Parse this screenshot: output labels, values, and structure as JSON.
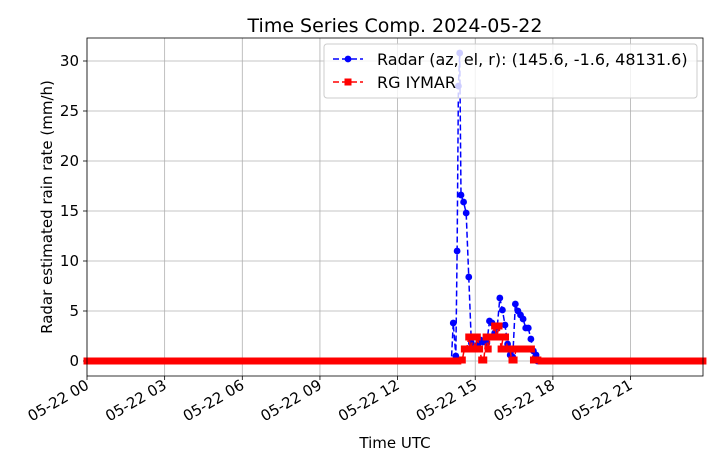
{
  "chart_data": {
    "type": "line",
    "title": "Time Series Comp. 2024-05-22",
    "xlabel": "Time UTC",
    "ylabel": "Radar estimated rain rate (mm/h)",
    "x_unit": "hours UTC on 2024-05-22",
    "xlim": [
      0,
      23.8
    ],
    "ylim": [
      -1.5,
      32.3
    ],
    "grid": true,
    "legend": "top-right",
    "x_ticks": [
      {
        "value": 0,
        "label": "05-22 00"
      },
      {
        "value": 3,
        "label": "05-22 03"
      },
      {
        "value": 6,
        "label": "05-22 06"
      },
      {
        "value": 9,
        "label": "05-22 09"
      },
      {
        "value": 12,
        "label": "05-22 12"
      },
      {
        "value": 15,
        "label": "05-22 15"
      },
      {
        "value": 18,
        "label": "05-22 18"
      },
      {
        "value": 21,
        "label": "05-22 21"
      }
    ],
    "y_ticks": [
      {
        "value": 0,
        "label": "0"
      },
      {
        "value": 5,
        "label": "5"
      },
      {
        "value": 10,
        "label": "10"
      },
      {
        "value": 15,
        "label": "15"
      },
      {
        "value": 20,
        "label": "20"
      },
      {
        "value": 25,
        "label": "25"
      },
      {
        "value": 30,
        "label": "30"
      }
    ],
    "series": [
      {
        "name": "Radar (az, el, r): (145.6, -1.6, 48131.6)",
        "color": "#0000ff",
        "marker": "circle",
        "line": "dashed",
        "zero_from": 0,
        "zero_to": 14.1,
        "zero_step": 0.0833,
        "zero_tail_from": 17.4,
        "zero_tail_to": 23.8,
        "points": [
          [
            14.15,
            3.8
          ],
          [
            14.25,
            0.5
          ],
          [
            14.3,
            11.0
          ],
          [
            14.35,
            27.5
          ],
          [
            14.4,
            30.8
          ],
          [
            14.45,
            16.6
          ],
          [
            14.55,
            15.9
          ],
          [
            14.65,
            14.8
          ],
          [
            14.75,
            8.4
          ],
          [
            14.85,
            1.8
          ],
          [
            15.0,
            1.2
          ],
          [
            15.1,
            1.6
          ],
          [
            15.2,
            2.1
          ],
          [
            15.3,
            1.9
          ],
          [
            15.45,
            1.8
          ],
          [
            15.55,
            4.0
          ],
          [
            15.65,
            3.8
          ],
          [
            15.75,
            2.8
          ],
          [
            15.85,
            3.4
          ],
          [
            15.95,
            6.3
          ],
          [
            16.05,
            5.1
          ],
          [
            16.15,
            3.6
          ],
          [
            16.25,
            1.7
          ],
          [
            16.35,
            0.6
          ],
          [
            16.45,
            0.4
          ],
          [
            16.55,
            5.7
          ],
          [
            16.65,
            5.0
          ],
          [
            16.75,
            4.6
          ],
          [
            16.85,
            4.2
          ],
          [
            16.95,
            3.3
          ],
          [
            17.05,
            3.3
          ],
          [
            17.15,
            2.2
          ],
          [
            17.25,
            1.0
          ],
          [
            17.35,
            0.6
          ]
        ]
      },
      {
        "name": "RG IYMAR",
        "color": "#ff0000",
        "marker": "square",
        "line": "dashed",
        "zero_from": 0,
        "zero_to": 14.4,
        "zero_step": 0.0833,
        "zero_tail_from": 17.55,
        "zero_tail_to": 23.8,
        "points": [
          [
            14.5,
            0.1
          ],
          [
            14.58,
            1.2
          ],
          [
            14.67,
            1.2
          ],
          [
            14.75,
            2.4
          ],
          [
            14.83,
            1.2
          ],
          [
            14.92,
            2.4
          ],
          [
            15.0,
            1.2
          ],
          [
            15.08,
            2.4
          ],
          [
            15.17,
            1.2
          ],
          [
            15.25,
            0.1
          ],
          [
            15.33,
            0.1
          ],
          [
            15.42,
            2.4
          ],
          [
            15.5,
            1.2
          ],
          [
            15.58,
            2.4
          ],
          [
            15.67,
            2.4
          ],
          [
            15.75,
            3.5
          ],
          [
            15.83,
            2.4
          ],
          [
            15.92,
            3.5
          ],
          [
            16.0,
            1.2
          ],
          [
            16.08,
            2.4
          ],
          [
            16.17,
            2.4
          ],
          [
            16.25,
            1.2
          ],
          [
            16.33,
            1.2
          ],
          [
            16.42,
            0.1
          ],
          [
            16.5,
            0.1
          ],
          [
            16.58,
            1.2
          ],
          [
            16.67,
            1.2
          ],
          [
            16.75,
            1.2
          ],
          [
            16.83,
            1.2
          ],
          [
            16.92,
            1.2
          ],
          [
            17.0,
            1.2
          ],
          [
            17.08,
            1.2
          ],
          [
            17.17,
            1.2
          ],
          [
            17.25,
            0.1
          ],
          [
            17.33,
            0.1
          ],
          [
            17.42,
            0.1
          ]
        ]
      }
    ]
  }
}
